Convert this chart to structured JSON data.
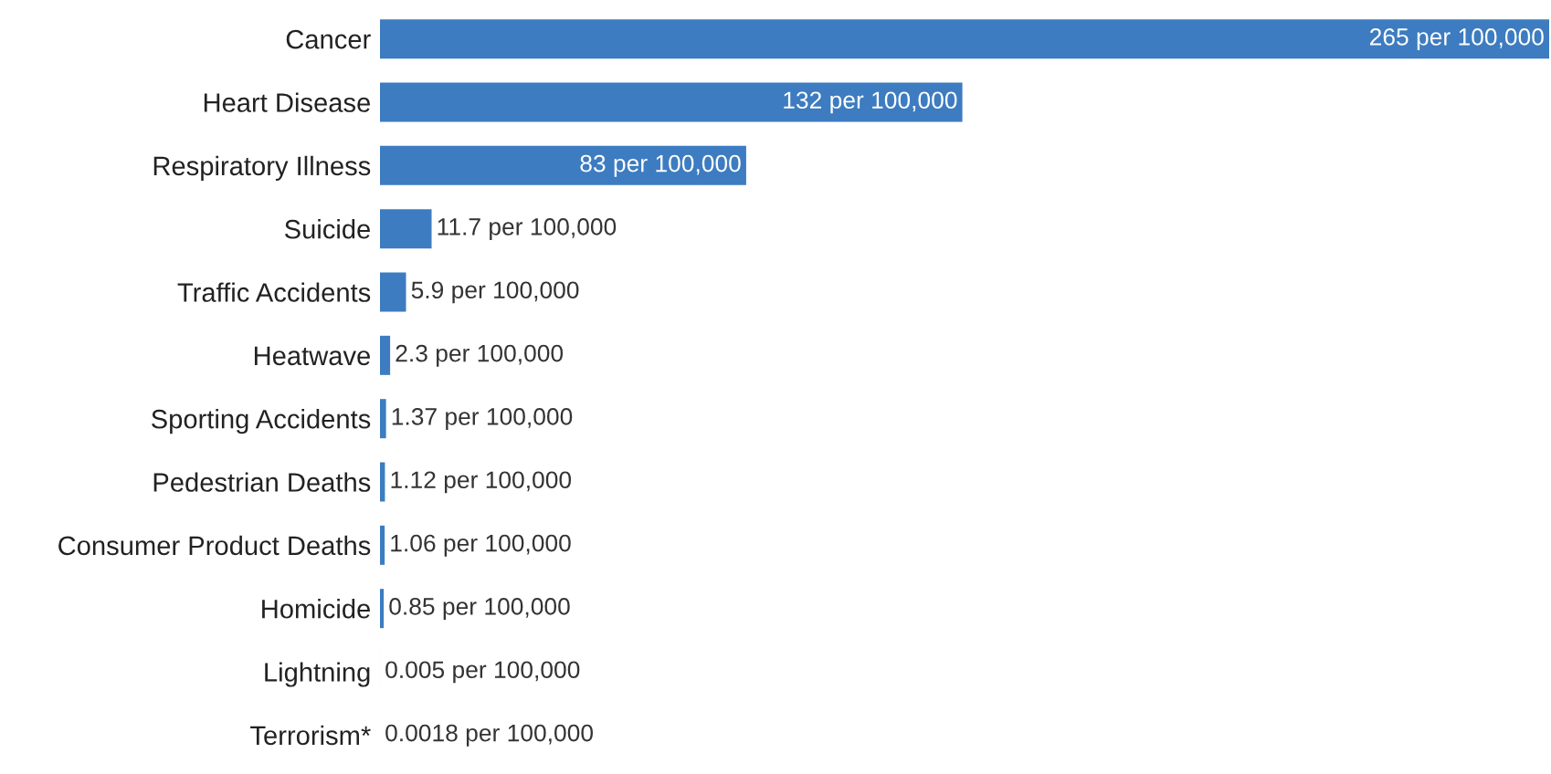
{
  "chart_data": {
    "type": "bar",
    "orientation": "horizontal",
    "categories": [
      "Cancer",
      "Heart Disease",
      "Respiratory Illness",
      "Suicide",
      "Traffic Accidents",
      "Heatwave",
      "Sporting Accidents",
      "Pedestrian Deaths",
      "Consumer Product Deaths",
      "Homicide",
      "Lightning",
      "Terrorism*"
    ],
    "values": [
      265,
      132,
      83,
      11.7,
      5.9,
      2.3,
      1.37,
      1.12,
      1.06,
      0.85,
      0.005,
      0.0018
    ],
    "value_labels": [
      "265 per 100,000",
      "132 per 100,000",
      "83 per 100,000",
      "11.7 per 100,000",
      "5.9 per 100,000",
      "2.3 per 100,000",
      "1.37 per 100,000",
      "1.12 per 100,000",
      "1.06 per 100,000",
      "0.85 per 100,000",
      "0.005 per 100,000",
      "0.0018 per 100,000"
    ],
    "color": "#3d7cc0",
    "grid": false,
    "legend": false
  }
}
